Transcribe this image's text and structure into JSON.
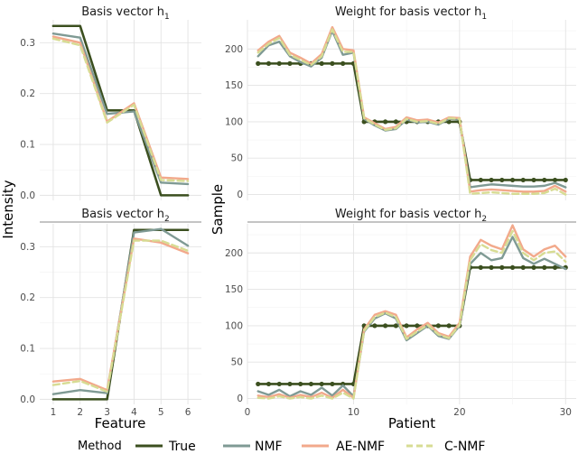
{
  "colors": {
    "True": "#3b4f1f",
    "NMF": "#7f9a94",
    "AE-NMF": "#f2a98b",
    "C-NMF": "#d7dc93"
  },
  "labels": {
    "x_left": "Feature",
    "x_right": "Patient",
    "y_left": "Intensity",
    "y_right": "Sample"
  },
  "legend": {
    "title": "Method",
    "entries": [
      "True",
      "NMF",
      "AE-NMF",
      "C-NMF"
    ]
  },
  "chart_data": [
    {
      "type": "line",
      "title": "Basis vector h",
      "title_subscript": "1",
      "x": [
        1,
        2,
        3,
        4,
        5,
        6
      ],
      "xticks": [
        "1",
        "2",
        "3",
        "4",
        "5",
        "6"
      ],
      "ylim": [
        -0.01,
        0.345
      ],
      "yticks": [
        0.0,
        0.1,
        0.2,
        0.3
      ],
      "ytick_labels": [
        "0.0",
        "0.1",
        "0.2",
        "0.3"
      ],
      "series": [
        {
          "name": "True",
          "values": [
            0.333,
            0.333,
            0.167,
            0.167,
            0.0,
            0.0
          ],
          "points": false
        },
        {
          "name": "NMF",
          "values": [
            0.318,
            0.31,
            0.16,
            0.165,
            0.025,
            0.022
          ],
          "points": false
        },
        {
          "name": "AE-NMF",
          "values": [
            0.312,
            0.3,
            0.145,
            0.181,
            0.035,
            0.032
          ],
          "points": false
        },
        {
          "name": "C-NMF",
          "values": [
            0.308,
            0.295,
            0.143,
            0.178,
            0.03,
            0.028
          ],
          "points": false
        }
      ]
    },
    {
      "type": "line",
      "title": "Weight for basis vector h",
      "title_subscript": "1",
      "x": [
        1,
        2,
        3,
        4,
        5,
        6,
        7,
        8,
        9,
        10,
        11,
        12,
        13,
        14,
        15,
        16,
        17,
        18,
        19,
        20,
        21,
        22,
        23,
        24,
        25,
        26,
        27,
        28,
        29,
        30
      ],
      "xticks": [
        "0",
        "10",
        "20",
        "30"
      ],
      "xlim": [
        0,
        31
      ],
      "ylim": [
        -8,
        240
      ],
      "yticks": [
        0,
        50,
        100,
        150,
        200
      ],
      "ytick_labels": [
        "0",
        "50",
        "100",
        "150",
        "200"
      ],
      "series": [
        {
          "name": "True",
          "points": true,
          "values": [
            180,
            180,
            180,
            180,
            180,
            180,
            180,
            180,
            180,
            180,
            100,
            100,
            100,
            100,
            100,
            100,
            100,
            100,
            100,
            100,
            20,
            20,
            20,
            20,
            20,
            20,
            20,
            20,
            20,
            20
          ]
        },
        {
          "name": "NMF",
          "points": false,
          "values": [
            190,
            205,
            210,
            190,
            182,
            176,
            188,
            225,
            192,
            195,
            104,
            95,
            88,
            90,
            103,
            99,
            100,
            96,
            104,
            103,
            10,
            12,
            14,
            13,
            12,
            11,
            11,
            12,
            16,
            10
          ]
        },
        {
          "name": "AE-NMF",
          "points": false,
          "values": [
            198,
            210,
            218,
            195,
            188,
            180,
            193,
            230,
            200,
            198,
            106,
            98,
            90,
            93,
            106,
            102,
            103,
            99,
            106,
            105,
            4,
            6,
            7,
            6,
            5,
            4,
            4,
            5,
            12,
            4
          ]
        },
        {
          "name": "C-NMF",
          "points": false,
          "values": [
            195,
            207,
            215,
            192,
            185,
            178,
            190,
            227,
            196,
            196,
            105,
            96,
            89,
            91,
            104,
            100,
            101,
            97,
            105,
            104,
            1,
            2,
            3,
            2,
            1,
            1,
            1,
            2,
            8,
            0
          ]
        }
      ]
    },
    {
      "type": "line",
      "title": "Basis vector h",
      "title_subscript": "2",
      "x": [
        1,
        2,
        3,
        4,
        5,
        6
      ],
      "xticks": [
        "1",
        "2",
        "3",
        "4",
        "5",
        "6"
      ],
      "ylim": [
        -0.01,
        0.345
      ],
      "yticks": [
        0.0,
        0.1,
        0.2,
        0.3
      ],
      "ytick_labels": [
        "0.0",
        "0.1",
        "0.2",
        "0.3"
      ],
      "series": [
        {
          "name": "True",
          "values": [
            0.0,
            0.0,
            0.0,
            0.333,
            0.333,
            0.333
          ],
          "points": false
        },
        {
          "name": "NMF",
          "values": [
            0.01,
            0.018,
            0.012,
            0.328,
            0.335,
            0.302
          ],
          "points": false
        },
        {
          "name": "AE-NMF",
          "values": [
            0.035,
            0.04,
            0.018,
            0.316,
            0.308,
            0.287
          ],
          "points": false
        },
        {
          "name": "C-NMF",
          "values": [
            0.028,
            0.036,
            0.015,
            0.312,
            0.312,
            0.292
          ],
          "points": false
        }
      ]
    },
    {
      "type": "line",
      "title": "Weight for basis vector h",
      "title_subscript": "2",
      "x": [
        1,
        2,
        3,
        4,
        5,
        6,
        7,
        8,
        9,
        10,
        11,
        12,
        13,
        14,
        15,
        16,
        17,
        18,
        19,
        20,
        21,
        22,
        23,
        24,
        25,
        26,
        27,
        28,
        29,
        30
      ],
      "xticks": [
        "0",
        "10",
        "20",
        "30"
      ],
      "xlim": [
        0,
        31
      ],
      "ylim": [
        -8,
        240
      ],
      "yticks": [
        0,
        50,
        100,
        150,
        200
      ],
      "ytick_labels": [
        "0",
        "50",
        "100",
        "150",
        "200"
      ],
      "series": [
        {
          "name": "True",
          "points": true,
          "values": [
            20,
            20,
            20,
            20,
            20,
            20,
            20,
            20,
            20,
            20,
            100,
            100,
            100,
            100,
            100,
            100,
            100,
            100,
            100,
            100,
            180,
            180,
            180,
            180,
            180,
            180,
            180,
            180,
            180,
            180
          ]
        },
        {
          "name": "NMF",
          "points": false,
          "values": [
            10,
            5,
            12,
            3,
            10,
            5,
            15,
            4,
            18,
            3,
            92,
            110,
            117,
            110,
            80,
            90,
            100,
            86,
            82,
            100,
            185,
            200,
            190,
            193,
            222,
            193,
            185,
            192,
            185,
            178
          ]
        },
        {
          "name": "AE-NMF",
          "points": false,
          "values": [
            4,
            2,
            6,
            1,
            5,
            2,
            8,
            1,
            12,
            1,
            95,
            115,
            120,
            115,
            84,
            95,
            104,
            90,
            85,
            104,
            195,
            218,
            210,
            205,
            238,
            205,
            195,
            205,
            210,
            195
          ]
        },
        {
          "name": "C-NMF",
          "points": false,
          "values": [
            1,
            0,
            3,
            0,
            2,
            0,
            4,
            0,
            8,
            0,
            93,
            112,
            118,
            112,
            82,
            92,
            101,
            88,
            83,
            101,
            190,
            212,
            204,
            200,
            230,
            200,
            190,
            200,
            202,
            188
          ]
        }
      ]
    }
  ]
}
